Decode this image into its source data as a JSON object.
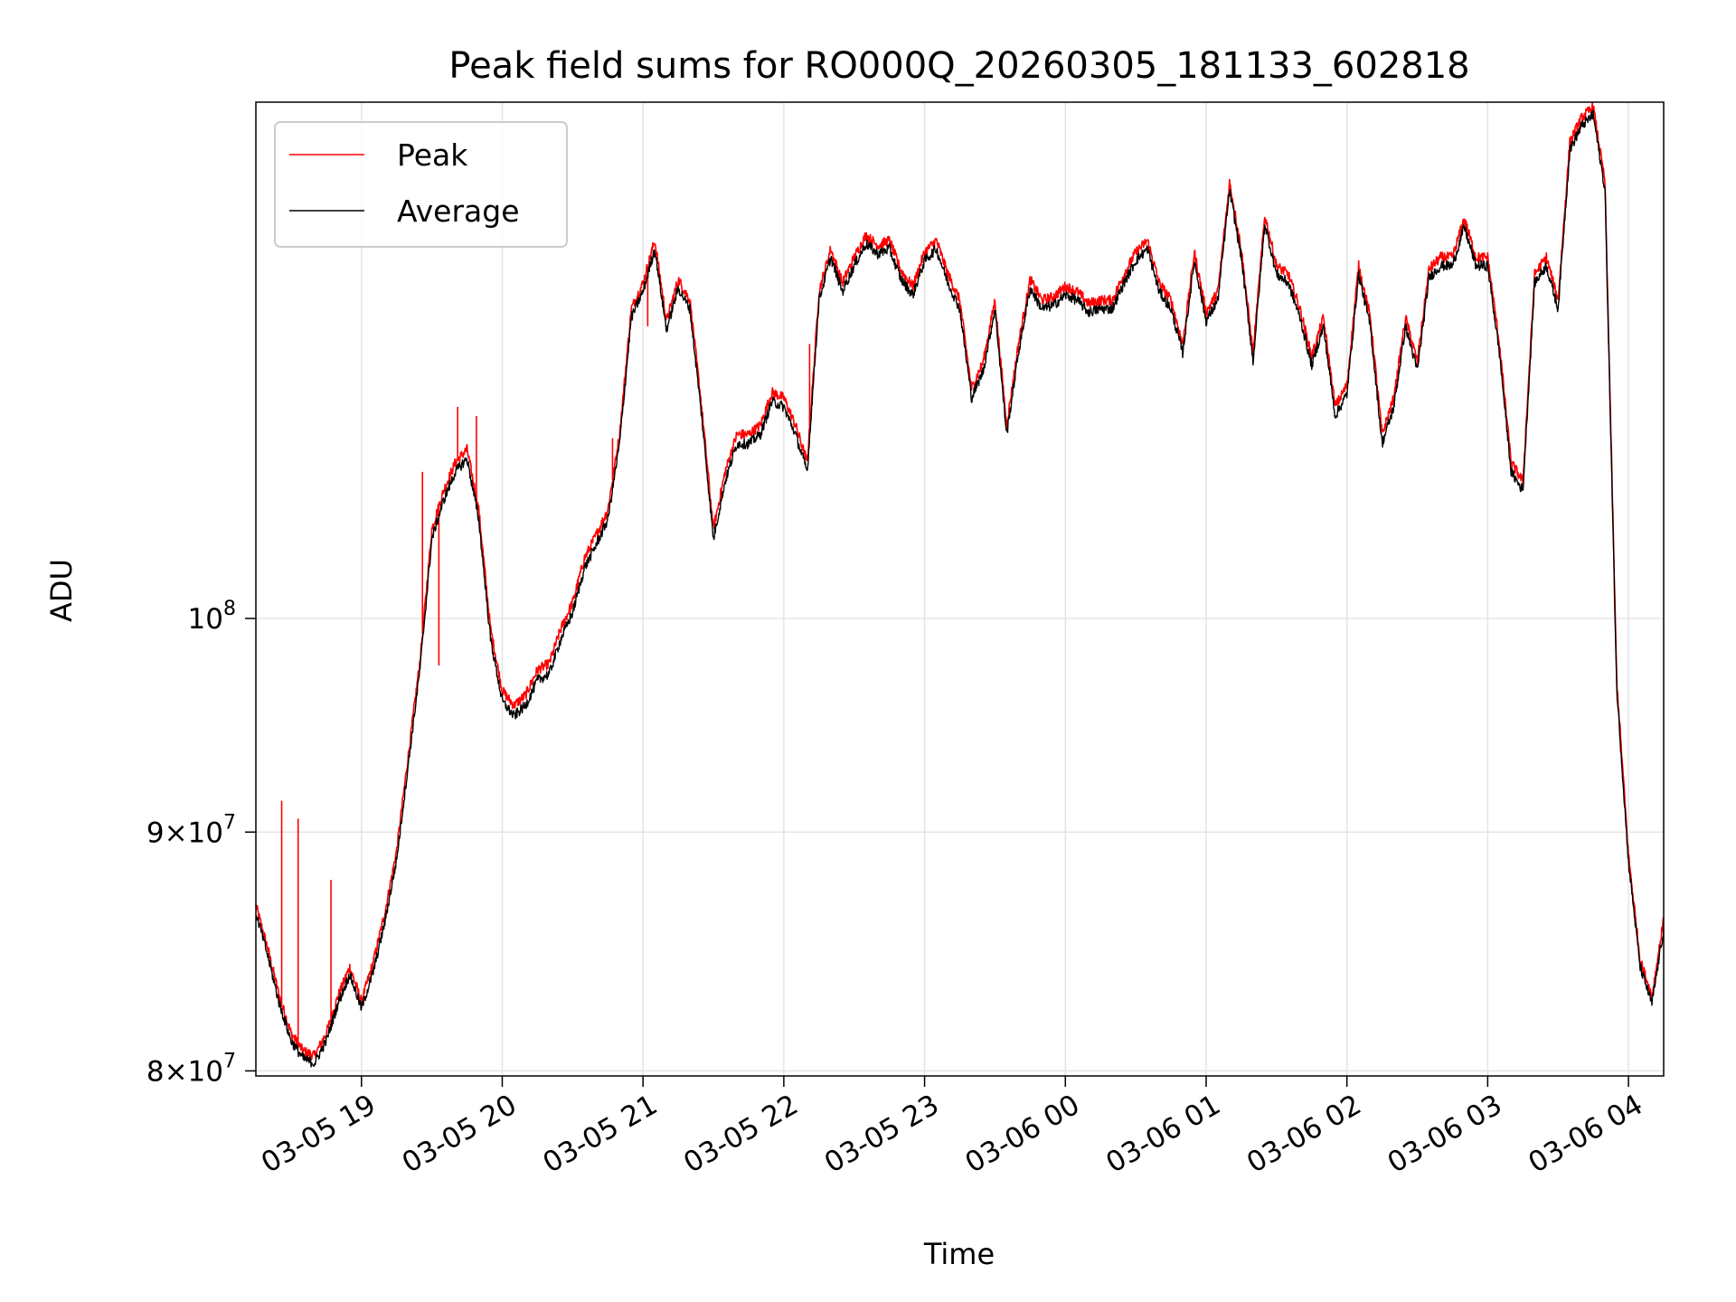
{
  "chart_data": {
    "type": "line",
    "title": "Peak field sums for RO000Q_20260305_181133_602818",
    "xlabel": "Time",
    "ylabel": "ADU",
    "yscale": "log",
    "xlim": [
      "2026-03-05 18:15",
      "2026-03-06 04:15"
    ],
    "ylim": [
      79800000,
      129000000
    ],
    "grid": true,
    "legend_placement": "top-left",
    "x_ticks": [
      "03-05 19",
      "03-05 20",
      "03-05 21",
      "03-05 22",
      "03-05 23",
      "03-06 00",
      "03-06 01",
      "03-06 02",
      "03-06 03",
      "03-06 04"
    ],
    "y_ticks": [
      {
        "value": 80000000,
        "mantissa": "8",
        "exponent": "7"
      },
      {
        "value": 90000000,
        "mantissa": "9",
        "exponent": "7"
      },
      {
        "value": 100000000,
        "mantissa": "",
        "exponent": "8"
      }
    ],
    "series": [
      {
        "name": "Peak",
        "color": "#ff0000",
        "x": [
          "2026-03-05 18:15",
          "2026-03-05 18:20",
          "2026-03-05 18:25",
          "2026-03-05 18:30",
          "2026-03-05 18:35",
          "2026-03-05 18:40",
          "2026-03-05 18:45",
          "2026-03-05 18:50",
          "2026-03-05 18:55",
          "2026-03-05 19:00",
          "2026-03-05 19:05",
          "2026-03-05 19:10",
          "2026-03-05 19:15",
          "2026-03-05 19:20",
          "2026-03-05 19:25",
          "2026-03-05 19:30",
          "2026-03-05 19:35",
          "2026-03-05 19:40",
          "2026-03-05 19:45",
          "2026-03-05 19:50",
          "2026-03-05 19:55",
          "2026-03-05 20:00",
          "2026-03-05 20:05",
          "2026-03-05 20:10",
          "2026-03-05 20:15",
          "2026-03-05 20:20",
          "2026-03-05 20:25",
          "2026-03-05 20:30",
          "2026-03-05 20:35",
          "2026-03-05 20:40",
          "2026-03-05 20:45",
          "2026-03-05 20:50",
          "2026-03-05 20:55",
          "2026-03-05 21:00",
          "2026-03-05 21:05",
          "2026-03-05 21:10",
          "2026-03-05 21:15",
          "2026-03-05 21:20",
          "2026-03-05 21:25",
          "2026-03-05 21:30",
          "2026-03-05 21:35",
          "2026-03-05 21:40",
          "2026-03-05 21:45",
          "2026-03-05 21:50",
          "2026-03-05 21:55",
          "2026-03-05 22:00",
          "2026-03-05 22:05",
          "2026-03-05 22:10",
          "2026-03-05 22:15",
          "2026-03-05 22:20",
          "2026-03-05 22:25",
          "2026-03-05 22:30",
          "2026-03-05 22:35",
          "2026-03-05 22:40",
          "2026-03-05 22:45",
          "2026-03-05 22:50",
          "2026-03-05 22:55",
          "2026-03-05 23:00",
          "2026-03-05 23:05",
          "2026-03-05 23:10",
          "2026-03-05 23:15",
          "2026-03-05 23:20",
          "2026-03-05 23:25",
          "2026-03-05 23:30",
          "2026-03-05 23:35",
          "2026-03-05 23:40",
          "2026-03-05 23:45",
          "2026-03-05 23:50",
          "2026-03-05 23:55",
          "2026-03-06 00:00",
          "2026-03-06 00:05",
          "2026-03-06 00:10",
          "2026-03-06 00:15",
          "2026-03-06 00:20",
          "2026-03-06 00:25",
          "2026-03-06 00:30",
          "2026-03-06 00:35",
          "2026-03-06 00:40",
          "2026-03-06 00:45",
          "2026-03-06 00:50",
          "2026-03-06 00:55",
          "2026-03-06 01:00",
          "2026-03-06 01:05",
          "2026-03-06 01:10",
          "2026-03-06 01:15",
          "2026-03-06 01:20",
          "2026-03-06 01:25",
          "2026-03-06 01:30",
          "2026-03-06 01:35",
          "2026-03-06 01:40",
          "2026-03-06 01:45",
          "2026-03-06 01:50",
          "2026-03-06 01:55",
          "2026-03-06 02:00",
          "2026-03-06 02:05",
          "2026-03-06 02:10",
          "2026-03-06 02:15",
          "2026-03-06 02:20",
          "2026-03-06 02:25",
          "2026-03-06 02:30",
          "2026-03-06 02:35",
          "2026-03-06 02:40",
          "2026-03-06 02:45",
          "2026-03-06 02:50",
          "2026-03-06 02:55",
          "2026-03-06 03:00",
          "2026-03-06 03:05",
          "2026-03-06 03:10",
          "2026-03-06 03:15",
          "2026-03-06 03:20",
          "2026-03-06 03:25",
          "2026-03-06 03:30",
          "2026-03-06 03:35",
          "2026-03-06 03:40",
          "2026-03-06 03:45",
          "2026-03-06 03:50",
          "2026-03-06 03:55",
          "2026-03-06 04:00",
          "2026-03-06 04:05",
          "2026-03-06 04:10",
          "2026-03-06 04:15"
        ],
        "y": [
          86800000,
          85000000,
          83000000,
          81500000,
          80800000,
          80600000,
          81500000,
          83000000,
          84200000,
          82800000,
          84400000,
          86500000,
          89200000,
          93500000,
          98000000,
          104500000,
          106500000,
          108000000,
          108700000,
          105500000,
          99500000,
          96500000,
          95800000,
          96300000,
          97500000,
          97800000,
          99500000,
          100800000,
          103000000,
          104200000,
          105500000,
          109500000,
          116500000,
          118000000,
          120500000,
          115800000,
          118200000,
          117000000,
          111000000,
          104500000,
          107500000,
          109500000,
          109500000,
          110000000,
          111800000,
          111500000,
          110000000,
          108000000,
          117500000,
          120000000,
          118000000,
          119500000,
          120800000,
          120200000,
          120500000,
          118700000,
          117800000,
          119800000,
          120500000,
          118500000,
          117000000,
          112000000,
          113500000,
          117000000,
          110000000,
          114500000,
          118200000,
          117000000,
          117200000,
          117800000,
          117500000,
          116800000,
          117000000,
          117000000,
          118500000,
          119800000,
          120500000,
          118000000,
          117000000,
          114500000,
          119800000,
          116300000,
          117500000,
          124000000,
          120000000,
          114000000,
          122000000,
          119000000,
          118500000,
          116500000,
          113800000,
          116000000,
          111000000,
          112200000,
          119000000,
          116000000,
          109500000,
          111500000,
          116000000,
          113500000,
          118800000,
          119500000,
          119500000,
          121800000,
          119500000,
          119500000,
          114500000,
          108000000,
          107000000,
          118500000,
          119500000,
          117000000,
          126500000,
          128000000,
          128700000,
          124000000,
          97000000,
          89000000,
          84500000,
          83000000,
          86200000
        ],
        "spikes": [
          {
            "x": "2026-03-05 18:26",
            "y": 91400000
          },
          {
            "x": "2026-03-05 18:33",
            "y": 90600000
          },
          {
            "x": "2026-03-05 18:47",
            "y": 87900000
          },
          {
            "x": "2026-03-05 19:26",
            "y": 107500000
          },
          {
            "x": "2026-03-05 19:33",
            "y": 97700000
          },
          {
            "x": "2026-03-05 19:41",
            "y": 111000000
          },
          {
            "x": "2026-03-05 19:49",
            "y": 110500000
          },
          {
            "x": "2026-03-05 20:47",
            "y": 109300000
          },
          {
            "x": "2026-03-05 21:02",
            "y": 115500000
          },
          {
            "x": "2026-03-05 22:11",
            "y": 114500000
          }
        ]
      },
      {
        "name": "Average",
        "color": "#000000",
        "x": [
          "2026-03-05 18:15",
          "2026-03-05 18:20",
          "2026-03-05 18:25",
          "2026-03-05 18:30",
          "2026-03-05 18:35",
          "2026-03-05 18:40",
          "2026-03-05 18:45",
          "2026-03-05 18:50",
          "2026-03-05 18:55",
          "2026-03-05 19:00",
          "2026-03-05 19:05",
          "2026-03-05 19:10",
          "2026-03-05 19:15",
          "2026-03-05 19:20",
          "2026-03-05 19:25",
          "2026-03-05 19:30",
          "2026-03-05 19:35",
          "2026-03-05 19:40",
          "2026-03-05 19:45",
          "2026-03-05 19:50",
          "2026-03-05 19:55",
          "2026-03-05 20:00",
          "2026-03-05 20:05",
          "2026-03-05 20:10",
          "2026-03-05 20:15",
          "2026-03-05 20:20",
          "2026-03-05 20:25",
          "2026-03-05 20:30",
          "2026-03-05 20:35",
          "2026-03-05 20:40",
          "2026-03-05 20:45",
          "2026-03-05 20:50",
          "2026-03-05 20:55",
          "2026-03-05 21:00",
          "2026-03-05 21:05",
          "2026-03-05 21:10",
          "2026-03-05 21:15",
          "2026-03-05 21:20",
          "2026-03-05 21:25",
          "2026-03-05 21:30",
          "2026-03-05 21:35",
          "2026-03-05 21:40",
          "2026-03-05 21:45",
          "2026-03-05 21:50",
          "2026-03-05 21:55",
          "2026-03-05 22:00",
          "2026-03-05 22:05",
          "2026-03-05 22:10",
          "2026-03-05 22:15",
          "2026-03-05 22:20",
          "2026-03-05 22:25",
          "2026-03-05 22:30",
          "2026-03-05 22:35",
          "2026-03-05 22:40",
          "2026-03-05 22:45",
          "2026-03-05 22:50",
          "2026-03-05 22:55",
          "2026-03-05 23:00",
          "2026-03-05 23:05",
          "2026-03-05 23:10",
          "2026-03-05 23:15",
          "2026-03-05 23:20",
          "2026-03-05 23:25",
          "2026-03-05 23:30",
          "2026-03-05 23:35",
          "2026-03-05 23:40",
          "2026-03-05 23:45",
          "2026-03-05 23:50",
          "2026-03-05 23:55",
          "2026-03-06 00:00",
          "2026-03-06 00:05",
          "2026-03-06 00:10",
          "2026-03-06 00:15",
          "2026-03-06 00:20",
          "2026-03-06 00:25",
          "2026-03-06 00:30",
          "2026-03-06 00:35",
          "2026-03-06 00:40",
          "2026-03-06 00:45",
          "2026-03-06 00:50",
          "2026-03-06 00:55",
          "2026-03-06 01:00",
          "2026-03-06 01:05",
          "2026-03-06 01:10",
          "2026-03-06 01:15",
          "2026-03-06 01:20",
          "2026-03-06 01:25",
          "2026-03-06 01:30",
          "2026-03-06 01:35",
          "2026-03-06 01:40",
          "2026-03-06 01:45",
          "2026-03-06 01:50",
          "2026-03-06 01:55",
          "2026-03-06 02:00",
          "2026-03-06 02:05",
          "2026-03-06 02:10",
          "2026-03-06 02:15",
          "2026-03-06 02:20",
          "2026-03-06 02:25",
          "2026-03-06 02:30",
          "2026-03-06 02:35",
          "2026-03-06 02:40",
          "2026-03-06 02:45",
          "2026-03-06 02:50",
          "2026-03-06 02:55",
          "2026-03-06 03:00",
          "2026-03-06 03:05",
          "2026-03-06 03:10",
          "2026-03-06 03:15",
          "2026-03-06 03:20",
          "2026-03-06 03:25",
          "2026-03-06 03:30",
          "2026-03-06 03:35",
          "2026-03-06 03:40",
          "2026-03-06 03:45",
          "2026-03-06 03:50",
          "2026-03-06 03:55",
          "2026-03-06 04:00",
          "2026-03-06 04:05",
          "2026-03-06 04:10",
          "2026-03-06 04:15"
        ],
        "y": [
          86500000,
          84700000,
          82700000,
          81200000,
          80500000,
          80300000,
          81200000,
          82700000,
          83900000,
          82500000,
          84000000,
          86100000,
          88800000,
          93100000,
          97600000,
          104000000,
          106000000,
          107500000,
          108200000,
          105000000,
          99000000,
          96000000,
          95300000,
          95800000,
          97000000,
          97300000,
          99000000,
          100300000,
          102500000,
          103700000,
          105000000,
          109000000,
          116000000,
          117500000,
          120000000,
          115300000,
          117700000,
          116500000,
          110500000,
          104000000,
          107000000,
          109000000,
          109000000,
          109500000,
          111300000,
          111000000,
          109500000,
          107500000,
          117000000,
          119500000,
          117500000,
          119000000,
          120300000,
          119700000,
          120000000,
          118200000,
          117300000,
          119300000,
          120000000,
          118000000,
          116500000,
          111500000,
          113000000,
          116500000,
          109500000,
          114000000,
          117700000,
          116500000,
          116700000,
          117300000,
          117000000,
          116300000,
          116500000,
          116500000,
          118000000,
          119300000,
          120000000,
          117500000,
          116500000,
          114000000,
          119300000,
          115800000,
          117000000,
          123500000,
          119500000,
          113500000,
          121500000,
          118500000,
          118000000,
          116000000,
          113300000,
          115500000,
          110500000,
          111700000,
          118500000,
          115500000,
          109000000,
          111000000,
          115500000,
          113000000,
          118300000,
          119000000,
          119000000,
          121300000,
          119000000,
          119000000,
          114000000,
          107500000,
          106500000,
          118000000,
          119000000,
          116500000,
          126000000,
          127500000,
          128200000,
          123500000,
          96600000,
          88700000,
          84200000,
          82700000,
          85800000
        ]
      }
    ]
  }
}
